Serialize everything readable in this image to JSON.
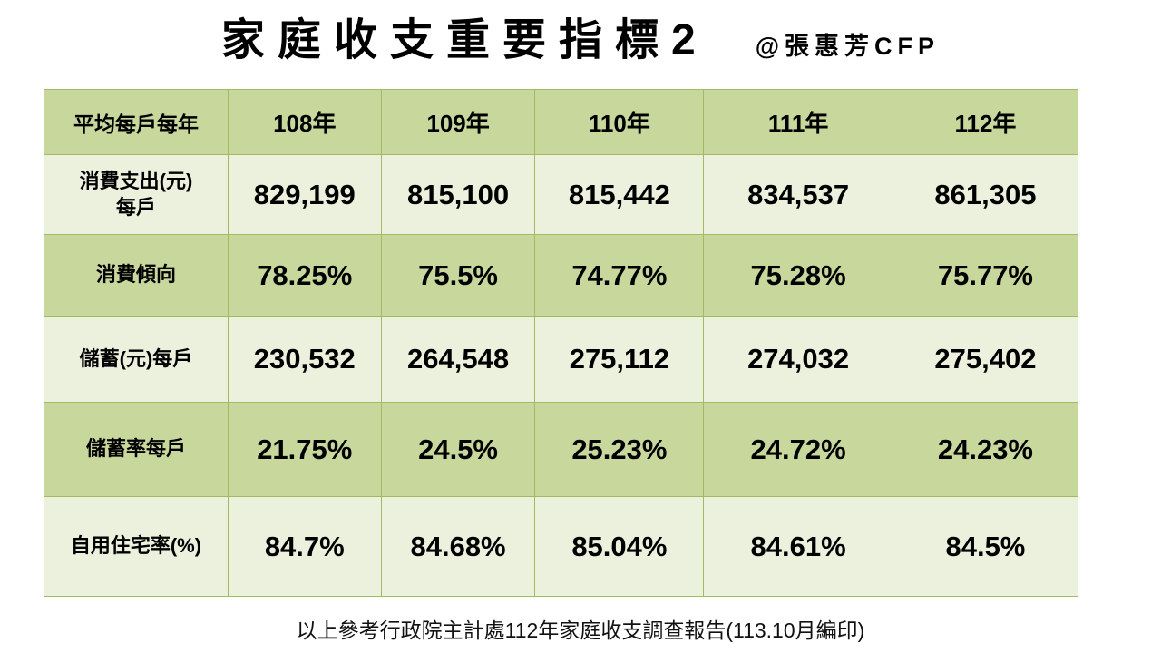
{
  "header": {
    "title": "家庭收支重要指標2",
    "credit": "@張惠芳CFP"
  },
  "table": {
    "columns": [
      "平均每戶每年",
      "108年",
      "109年",
      "110年",
      "111年",
      "112年"
    ],
    "rows": [
      {
        "label": "消費支出(元)\n每戶",
        "values": [
          "829,199",
          "815,100",
          "815,442",
          "834,537",
          "861,305"
        ]
      },
      {
        "label": "消費傾向",
        "values": [
          "78.25%",
          "75.5%",
          "74.77%",
          "75.28%",
          "75.77%"
        ]
      },
      {
        "label": "儲蓄(元)每戶",
        "values": [
          "230,532",
          "264,548",
          "275,112",
          "274,032",
          "275,402"
        ]
      },
      {
        "label": "儲蓄率每戶",
        "values": [
          "21.75%",
          "24.5%",
          "25.23%",
          "24.72%",
          "24.23%"
        ]
      },
      {
        "label": "自用住宅率(%)",
        "values": [
          "84.7%",
          "84.68%",
          "85.04%",
          "84.61%",
          "84.5%"
        ]
      }
    ]
  },
  "footer": {
    "note": "以上參考行政院主計處112年家庭收支調查報告(113.10月編印)"
  },
  "theme": {
    "band_dark": "#c8d79c",
    "band_light": "#ecf1de",
    "border": "#a3b964",
    "text": "#000000",
    "background": "#ffffff"
  }
}
